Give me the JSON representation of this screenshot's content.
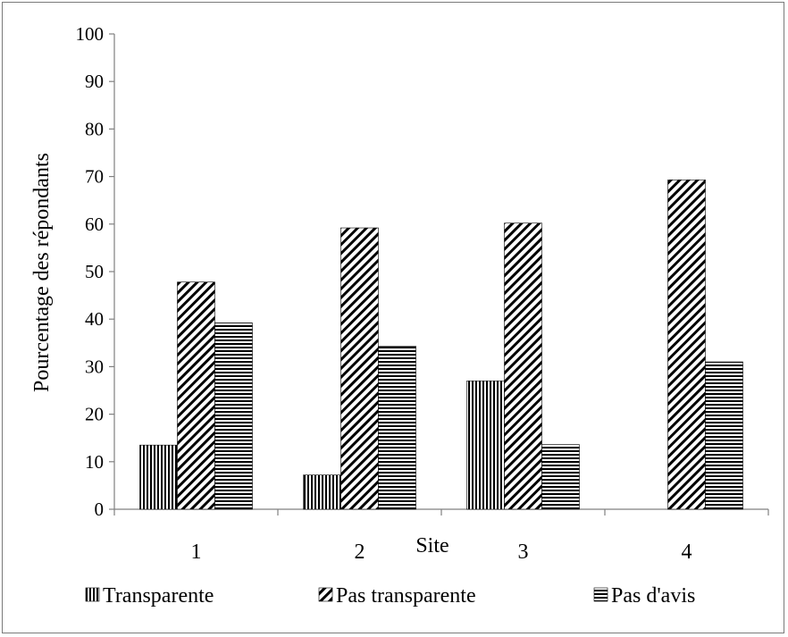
{
  "chart_data": {
    "type": "bar",
    "categories": [
      "1",
      "2",
      "3",
      "4"
    ],
    "series": [
      {
        "name": "Transparente",
        "values": [
          13.5,
          7.2,
          27,
          0
        ]
      },
      {
        "name": "Pas transparente",
        "values": [
          47.8,
          59.2,
          60.2,
          69.3
        ]
      },
      {
        "name": "Pas d'avis",
        "values": [
          39.2,
          34.3,
          13.6,
          31
        ]
      }
    ],
    "title": "",
    "xlabel": "Site",
    "ylabel": "Pourcentage des répondants",
    "ylim": [
      0,
      100
    ],
    "yticks": [
      "0",
      "10",
      "20",
      "30",
      "40",
      "50",
      "60",
      "70",
      "80",
      "90",
      "100"
    ],
    "grid": false,
    "legend_position": "bottom",
    "pattern_names": [
      "vertical-stripes",
      "diagonal-stripes",
      "horizontal-stripes"
    ]
  }
}
